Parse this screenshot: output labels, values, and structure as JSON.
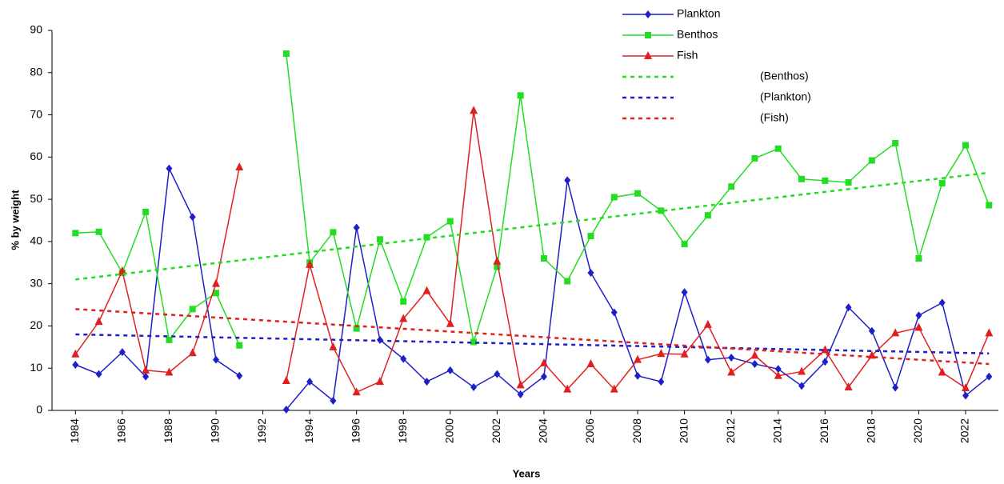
{
  "chart_data": {
    "type": "line",
    "ylabel": "% by weight",
    "xlabel": "Years",
    "x": [
      1984,
      1985,
      1986,
      1987,
      1988,
      1989,
      1990,
      1991,
      1992,
      1993,
      1994,
      1995,
      1996,
      1997,
      1998,
      1999,
      2000,
      2001,
      2002,
      2003,
      2004,
      2005,
      2006,
      2007,
      2008,
      2009,
      2010,
      2011,
      2012,
      2013,
      2014,
      2015,
      2016,
      2017,
      2018,
      2019,
      2020,
      2021,
      2022,
      2023
    ],
    "xlim": [
      1983,
      2023.4
    ],
    "xticks": [
      1984,
      1986,
      1988,
      1990,
      1992,
      1994,
      1996,
      1998,
      2000,
      2002,
      2004,
      2006,
      2008,
      2010,
      2012,
      2014,
      2016,
      2018,
      2020,
      2022
    ],
    "ylim": [
      0,
      90
    ],
    "yticks": [
      0,
      10,
      20,
      30,
      40,
      50,
      60,
      70,
      80,
      90
    ],
    "series": [
      {
        "name": "Plankton",
        "color": "#1f1fc8",
        "marker": "diamond",
        "values": [
          10.8,
          8.6,
          13.8,
          8,
          57.3,
          45.8,
          12,
          8.2,
          null,
          0.2,
          6.8,
          2.3,
          43.3,
          16.7,
          12.2,
          6.8,
          9.5,
          5.5,
          8.6,
          3.8,
          8,
          54.5,
          32.6,
          23.2,
          8.2,
          6.8,
          28,
          12,
          12.5,
          11,
          9.8,
          5.8,
          11.5,
          24.4,
          18.8,
          5.4,
          22.5,
          25.5,
          3.5,
          8
        ]
      },
      {
        "name": "Benthos",
        "color": "#22dd22",
        "marker": "square",
        "values": [
          42,
          42.3,
          32.6,
          47,
          16.7,
          24,
          27.8,
          15.4,
          null,
          84.5,
          35,
          42.2,
          19.4,
          40.5,
          25.8,
          41,
          44.8,
          16.2,
          34,
          74.6,
          36,
          30.6,
          41.3,
          50.5,
          51.4,
          47.3,
          39.4,
          46.2,
          53,
          59.7,
          62,
          54.8,
          54.4,
          54,
          59.2,
          63.3,
          36,
          53.8,
          62.8,
          48.6
        ]
      },
      {
        "name": "Fish",
        "color": "#e02020",
        "marker": "triangle",
        "values": [
          13.3,
          21,
          33,
          9.5,
          9,
          13.6,
          30,
          57.6,
          null,
          7,
          34.5,
          15,
          4.3,
          6.8,
          21.7,
          28.3,
          20.5,
          71,
          35.3,
          6,
          11.2,
          5,
          11,
          5,
          12,
          13.4,
          13.3,
          20.3,
          9,
          13,
          8.2,
          9.2,
          14.3,
          5.5,
          13,
          18.3,
          19.6,
          9,
          5.3,
          18.3
        ]
      }
    ],
    "trends": [
      {
        "name": "(Benthos)",
        "color": "#22dd22",
        "x": [
          1984,
          2023
        ],
        "values": [
          31,
          56.3
        ]
      },
      {
        "name": "(Plankton)",
        "color": "#1f1fc8",
        "x": [
          1984,
          2023
        ],
        "values": [
          18,
          13.5
        ]
      },
      {
        "name": "(Fish)",
        "color": "#e02020",
        "x": [
          1984,
          2023
        ],
        "values": [
          24,
          11
        ]
      }
    ]
  }
}
